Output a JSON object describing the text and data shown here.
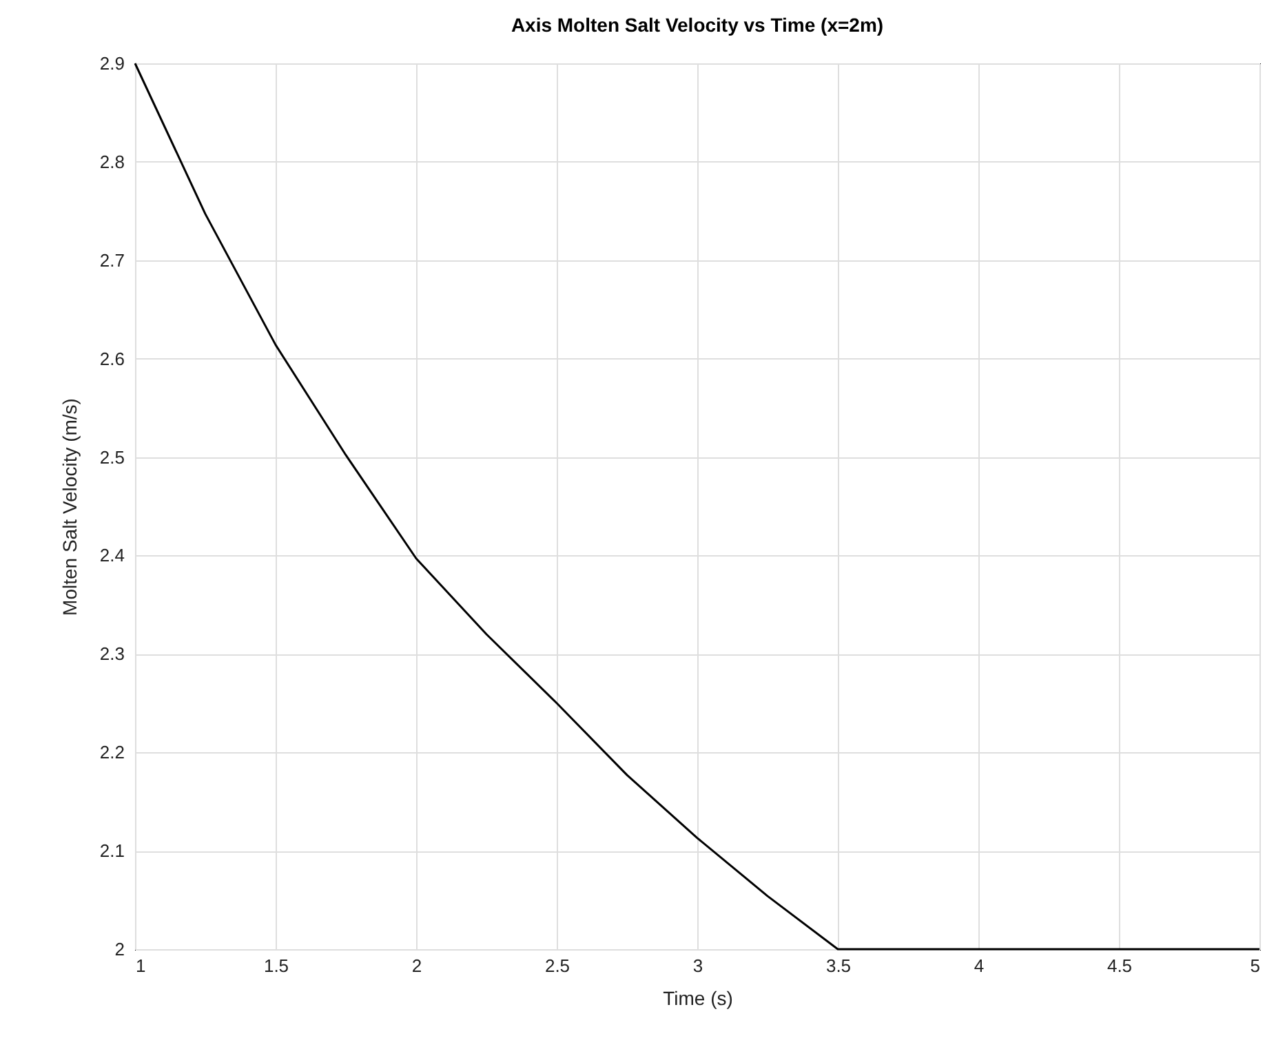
{
  "chart_data": {
    "type": "line",
    "title": "Axis Molten Salt Velocity vs Time (x=2m)",
    "xlabel": "Time (s)",
    "ylabel": "Molten Salt Velocity (m/s)",
    "x": [
      1,
      1.25,
      1.5,
      1.75,
      2,
      2.25,
      2.5,
      2.75,
      3,
      3.25,
      3.5,
      4,
      4.5,
      5
    ],
    "series": [
      {
        "color": "#000000",
        "values": [
          2.9,
          2.747,
          2.614,
          2.502,
          2.397,
          2.32,
          2.25,
          2.177,
          2.113,
          2.054,
          2.0,
          2.0,
          2.0,
          2.0
        ]
      }
    ],
    "xlim": [
      1,
      5
    ],
    "xticks": [
      1,
      1.5,
      2,
      2.5,
      3,
      3.5,
      4,
      4.5,
      5
    ],
    "ylim": [
      2,
      2.9
    ],
    "yticks": [
      2,
      2.1,
      2.2,
      2.3,
      2.4,
      2.5,
      2.6,
      2.7,
      2.8,
      2.9
    ],
    "grid": true,
    "marker": "none",
    "line_style": "solid"
  }
}
